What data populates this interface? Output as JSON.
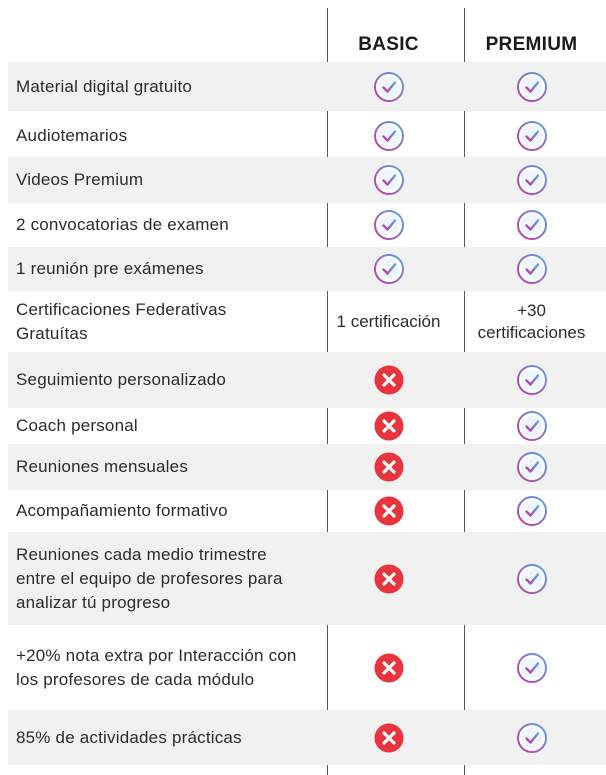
{
  "header": {
    "basic": "BASIC",
    "premium": "PREMIUM"
  },
  "colors": {
    "check_gradient_start": "#c23a9b",
    "check_gradient_end": "#5aa8e6",
    "cross_red": "#e8343c",
    "row_shade": "#f1f1f1"
  },
  "icons": {
    "included": "check-circle-icon",
    "excluded": "cross-circle-icon"
  },
  "rows": [
    {
      "feature": "Material digital gratuito",
      "basic": "check",
      "premium": "check"
    },
    {
      "feature": "Audiotemarios",
      "basic": "check",
      "premium": "check"
    },
    {
      "feature": "Videos Premium",
      "basic": "check",
      "premium": "check"
    },
    {
      "feature": "2 convocatorias de examen",
      "basic": "check",
      "premium": "check"
    },
    {
      "feature": "1 reunión pre exámenes",
      "basic": "check",
      "premium": "check"
    },
    {
      "feature": "Certificaciones Federativas Gratuítas",
      "basic_text": "1 certificación",
      "premium_text": "+30 certificaciones"
    },
    {
      "feature": "Seguimiento personalizado",
      "basic": "cross",
      "premium": "check"
    },
    {
      "feature": "Coach personal",
      "basic": "cross",
      "premium": "check"
    },
    {
      "feature": "Reuniones mensuales",
      "basic": "cross",
      "premium": "check"
    },
    {
      "feature": "Acompañamiento formativo",
      "basic": "cross",
      "premium": "check"
    },
    {
      "feature": "Reuniones cada medio trimestre entre el equipo de profesores para analizar tú progreso",
      "basic": "cross",
      "premium": "check"
    },
    {
      "feature": "+20% nota extra por Interacción con los profesores de cada módulo",
      "basic": "cross",
      "premium": "check"
    },
    {
      "feature": "85% de actividades prácticas",
      "basic": "cross",
      "premium": "check"
    }
  ]
}
